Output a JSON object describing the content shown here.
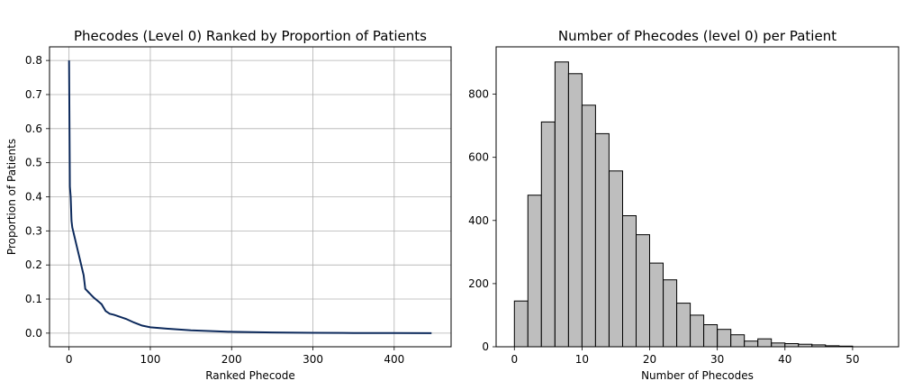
{
  "chart_data": [
    {
      "type": "line",
      "title": "Phecodes (Level 0) Ranked by Proportion of Patients",
      "xlabel": "Ranked Phecode",
      "ylabel": "Proportion of Patients",
      "xlim": [
        -24,
        470
      ],
      "ylim": [
        -0.04,
        0.84
      ],
      "xticks": [
        0,
        100,
        200,
        300,
        400
      ],
      "yticks": [
        0.0,
        0.1,
        0.2,
        0.3,
        0.4,
        0.5,
        0.6,
        0.7,
        0.8
      ],
      "xtick_labels": [
        "0",
        "100",
        "200",
        "300",
        "400"
      ],
      "ytick_labels": [
        "0.0",
        "0.1",
        "0.2",
        "0.3",
        "0.4",
        "0.5",
        "0.6",
        "0.7",
        "0.8"
      ],
      "grid": true,
      "color": "#0d2a5c",
      "x": [
        0,
        1,
        2,
        3,
        4,
        5,
        6,
        8,
        10,
        12,
        14,
        16,
        18,
        20,
        22,
        24,
        26,
        28,
        30,
        35,
        40,
        45,
        50,
        55,
        60,
        70,
        80,
        90,
        100,
        120,
        150,
        200,
        250,
        300,
        350,
        400,
        446
      ],
      "y": [
        0.8,
        0.43,
        0.4,
        0.33,
        0.31,
        0.3,
        0.29,
        0.27,
        0.25,
        0.23,
        0.21,
        0.19,
        0.17,
        0.13,
        0.125,
        0.12,
        0.115,
        0.11,
        0.105,
        0.095,
        0.085,
        0.065,
        0.057,
        0.054,
        0.05,
        0.042,
        0.031,
        0.022,
        0.017,
        0.013,
        0.008,
        0.004,
        0.002,
        0.001,
        0.0005,
        0.0002,
        0.0
      ]
    },
    {
      "type": "bar",
      "title": "Number of Phecodes (level 0) per Patient",
      "xlabel": "Number of Phecodes",
      "ylabel": "",
      "xlim": [
        -2.7,
        56.8
      ],
      "ylim": [
        0,
        950
      ],
      "xticks": [
        0,
        10,
        20,
        30,
        40,
        50
      ],
      "yticks": [
        0,
        200,
        400,
        600,
        800
      ],
      "xtick_labels": [
        "0",
        "10",
        "20",
        "30",
        "40",
        "50"
      ],
      "ytick_labels": [
        "0",
        "200",
        "400",
        "600",
        "800"
      ],
      "grid": false,
      "bar_color": "#bebebe",
      "edge_color": "#000000",
      "bin_start": 0,
      "bin_width": 2,
      "values": [
        145,
        480,
        712,
        902,
        865,
        765,
        675,
        557,
        415,
        355,
        265,
        212,
        138,
        100,
        70,
        55,
        38,
        18,
        25,
        12,
        10,
        8,
        6,
        3,
        2
      ]
    }
  ]
}
